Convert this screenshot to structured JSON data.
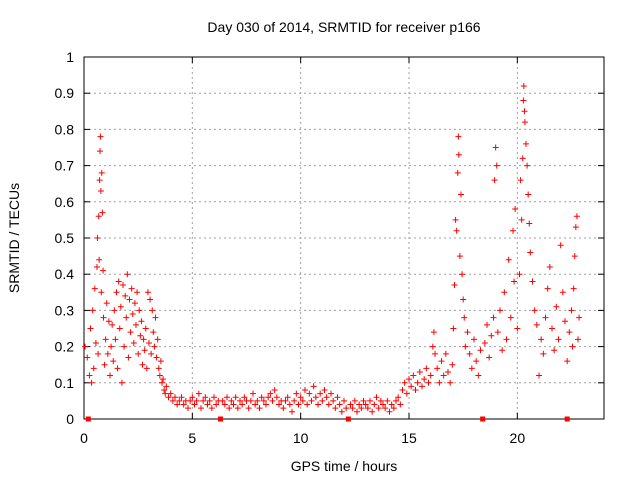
{
  "chart_data": {
    "type": "scatter",
    "title": "Day 030 of 2014, SRMTID for receiver p166",
    "xlabel": "GPS time / hours",
    "ylabel": "SRMTID / TECUs",
    "xlim": [
      0,
      24
    ],
    "ylim": [
      0,
      1
    ],
    "grid": true,
    "x_ticks": [
      0,
      5,
      10,
      15,
      20
    ],
    "x_tick_labels": [
      "0",
      "5",
      "10",
      "15",
      "20"
    ],
    "y_ticks": [
      0,
      0.1,
      0.2,
      0.3,
      0.4,
      0.5,
      0.6,
      0.7,
      0.8,
      0.9,
      1
    ],
    "y_tick_labels": [
      "0",
      "0.1",
      "0.2",
      "0.3",
      "0.4",
      "0.5",
      "0.6",
      "0.7",
      "0.8",
      "0.9",
      "1"
    ],
    "marker": "+",
    "marker_color": "#ff0000",
    "gap_markers_x": [
      0.2,
      6.3,
      12.2,
      18.4,
      22.3
    ],
    "series": [
      {
        "name": "SRMTID",
        "points": [
          [
            0.05,
            0.2
          ],
          [
            0.15,
            0.17
          ],
          [
            0.25,
            0.12
          ],
          [
            0.3,
            0.25
          ],
          [
            0.35,
            0.1
          ],
          [
            0.4,
            0.3
          ],
          [
            0.45,
            0.14
          ],
          [
            0.5,
            0.36
          ],
          [
            0.55,
            0.21
          ],
          [
            0.6,
            0.42
          ],
          [
            0.62,
            0.5
          ],
          [
            0.65,
            0.18
          ],
          [
            0.68,
            0.56
          ],
          [
            0.7,
            0.44
          ],
          [
            0.72,
            0.66
          ],
          [
            0.74,
            0.74
          ],
          [
            0.76,
            0.78
          ],
          [
            0.78,
            0.63
          ],
          [
            0.8,
            0.35
          ],
          [
            0.82,
            0.68
          ],
          [
            0.85,
            0.57
          ],
          [
            0.88,
            0.41
          ],
          [
            0.9,
            0.28
          ],
          [
            0.95,
            0.15
          ],
          [
            1.0,
            0.22
          ],
          [
            1.05,
            0.32
          ],
          [
            1.1,
            0.18
          ],
          [
            1.15,
            0.27
          ],
          [
            1.2,
            0.12
          ],
          [
            1.25,
            0.2
          ],
          [
            1.3,
            0.26
          ],
          [
            1.35,
            0.16
          ],
          [
            1.4,
            0.3
          ],
          [
            1.45,
            0.22
          ],
          [
            1.5,
            0.35
          ],
          [
            1.55,
            0.14
          ],
          [
            1.6,
            0.38
          ],
          [
            1.65,
            0.25
          ],
          [
            1.7,
            0.31
          ],
          [
            1.75,
            0.1
          ],
          [
            1.8,
            0.37
          ],
          [
            1.85,
            0.2
          ],
          [
            1.9,
            0.34
          ],
          [
            1.95,
            0.28
          ],
          [
            2.0,
            0.4
          ],
          [
            2.05,
            0.17
          ],
          [
            2.1,
            0.33
          ],
          [
            2.15,
            0.24
          ],
          [
            2.2,
            0.36
          ],
          [
            2.25,
            0.29
          ],
          [
            2.3,
            0.21
          ],
          [
            2.35,
            0.32
          ],
          [
            2.4,
            0.26
          ],
          [
            2.45,
            0.35
          ],
          [
            2.5,
            0.18
          ],
          [
            2.55,
            0.3
          ],
          [
            2.6,
            0.23
          ],
          [
            2.65,
            0.27
          ],
          [
            2.7,
            0.15
          ],
          [
            2.75,
            0.22
          ],
          [
            2.8,
            0.19
          ],
          [
            2.85,
            0.25
          ],
          [
            2.9,
            0.14
          ],
          [
            2.95,
            0.35
          ],
          [
            3.0,
            0.21
          ],
          [
            3.05,
            0.33
          ],
          [
            3.1,
            0.18
          ],
          [
            3.15,
            0.3
          ],
          [
            3.2,
            0.24
          ],
          [
            3.25,
            0.2
          ],
          [
            3.3,
            0.28
          ],
          [
            3.35,
            0.17
          ],
          [
            3.4,
            0.22
          ],
          [
            3.45,
            0.14
          ],
          [
            3.5,
            0.12
          ],
          [
            3.55,
            0.16
          ],
          [
            3.6,
            0.1
          ],
          [
            3.65,
            0.11
          ],
          [
            3.7,
            0.08
          ],
          [
            3.75,
            0.07
          ],
          [
            3.8,
            0.09
          ],
          [
            3.9,
            0.06
          ],
          [
            4.0,
            0.07
          ],
          [
            4.1,
            0.05
          ],
          [
            4.2,
            0.06
          ],
          [
            4.3,
            0.04
          ],
          [
            4.4,
            0.05
          ],
          [
            4.5,
            0.06
          ],
          [
            4.6,
            0.04
          ],
          [
            4.7,
            0.05
          ],
          [
            4.8,
            0.03
          ],
          [
            4.9,
            0.05
          ],
          [
            5.0,
            0.06
          ],
          [
            5.1,
            0.04
          ],
          [
            5.2,
            0.05
          ],
          [
            5.3,
            0.07
          ],
          [
            5.4,
            0.03
          ],
          [
            5.5,
            0.05
          ],
          [
            5.6,
            0.06
          ],
          [
            5.7,
            0.04
          ],
          [
            5.8,
            0.05
          ],
          [
            5.9,
            0.03
          ],
          [
            6.0,
            0.06
          ],
          [
            6.1,
            0.04
          ],
          [
            6.2,
            0.05
          ],
          [
            6.4,
            0.05
          ],
          [
            6.5,
            0.04
          ],
          [
            6.6,
            0.06
          ],
          [
            6.7,
            0.03
          ],
          [
            6.8,
            0.05
          ],
          [
            6.9,
            0.04
          ],
          [
            7.0,
            0.06
          ],
          [
            7.1,
            0.03
          ],
          [
            7.2,
            0.05
          ],
          [
            7.3,
            0.04
          ],
          [
            7.4,
            0.06
          ],
          [
            7.5,
            0.05
          ],
          [
            7.6,
            0.03
          ],
          [
            7.7,
            0.05
          ],
          [
            7.8,
            0.07
          ],
          [
            7.9,
            0.04
          ],
          [
            8.0,
            0.05
          ],
          [
            8.1,
            0.03
          ],
          [
            8.2,
            0.06
          ],
          [
            8.3,
            0.05
          ],
          [
            8.4,
            0.04
          ],
          [
            8.5,
            0.06
          ],
          [
            8.6,
            0.07
          ],
          [
            8.7,
            0.05
          ],
          [
            8.8,
            0.08
          ],
          [
            8.9,
            0.06
          ],
          [
            9.0,
            0.04
          ],
          [
            9.1,
            0.05
          ],
          [
            9.2,
            0.03
          ],
          [
            9.3,
            0.05
          ],
          [
            9.4,
            0.06
          ],
          [
            9.5,
            0.04
          ],
          [
            9.6,
            0.02
          ],
          [
            9.7,
            0.05
          ],
          [
            9.8,
            0.07
          ],
          [
            9.9,
            0.04
          ],
          [
            10.0,
            0.06
          ],
          [
            10.1,
            0.05
          ],
          [
            10.2,
            0.08
          ],
          [
            10.3,
            0.04
          ],
          [
            10.4,
            0.07
          ],
          [
            10.5,
            0.05
          ],
          [
            10.6,
            0.09
          ],
          [
            10.7,
            0.06
          ],
          [
            10.8,
            0.04
          ],
          [
            10.9,
            0.07
          ],
          [
            11.0,
            0.05
          ],
          [
            11.1,
            0.08
          ],
          [
            11.2,
            0.06
          ],
          [
            11.3,
            0.04
          ],
          [
            11.4,
            0.07
          ],
          [
            11.5,
            0.05
          ],
          [
            11.6,
            0.03
          ],
          [
            11.7,
            0.06
          ],
          [
            11.8,
            0.04
          ],
          [
            11.9,
            0.02
          ],
          [
            12.0,
            0.05
          ],
          [
            12.1,
            0.03
          ],
          [
            12.3,
            0.04
          ],
          [
            12.4,
            0.03
          ],
          [
            12.5,
            0.05
          ],
          [
            12.6,
            0.02
          ],
          [
            12.7,
            0.04
          ],
          [
            12.8,
            0.03
          ],
          [
            12.9,
            0.05
          ],
          [
            13.0,
            0.04
          ],
          [
            13.1,
            0.03
          ],
          [
            13.2,
            0.05
          ],
          [
            13.3,
            0.02
          ],
          [
            13.4,
            0.04
          ],
          [
            13.5,
            0.06
          ],
          [
            13.6,
            0.03
          ],
          [
            13.7,
            0.05
          ],
          [
            13.8,
            0.04
          ],
          [
            13.9,
            0.03
          ],
          [
            14.0,
            0.05
          ],
          [
            14.1,
            0.02
          ],
          [
            14.2,
            0.04
          ],
          [
            14.3,
            0.03
          ],
          [
            14.4,
            0.05
          ],
          [
            14.5,
            0.06
          ],
          [
            14.6,
            0.04
          ],
          [
            14.7,
            0.08
          ],
          [
            14.8,
            0.1
          ],
          [
            14.9,
            0.07
          ],
          [
            15.0,
            0.11
          ],
          [
            15.1,
            0.09
          ],
          [
            15.2,
            0.12
          ],
          [
            15.3,
            0.08
          ],
          [
            15.4,
            0.1
          ],
          [
            15.5,
            0.13
          ],
          [
            15.6,
            0.09
          ],
          [
            15.7,
            0.11
          ],
          [
            15.8,
            0.14
          ],
          [
            15.9,
            0.1
          ],
          [
            16.0,
            0.12
          ],
          [
            16.1,
            0.2
          ],
          [
            16.15,
            0.24
          ],
          [
            16.2,
            0.18
          ],
          [
            16.3,
            0.14
          ],
          [
            16.4,
            0.1
          ],
          [
            16.5,
            0.16
          ],
          [
            16.6,
            0.12
          ],
          [
            16.7,
            0.18
          ],
          [
            16.8,
            0.13
          ],
          [
            16.9,
            0.1
          ],
          [
            17.0,
            0.15
          ],
          [
            17.05,
            0.25
          ],
          [
            17.1,
            0.37
          ],
          [
            17.15,
            0.55
          ],
          [
            17.2,
            0.52
          ],
          [
            17.25,
            0.68
          ],
          [
            17.28,
            0.78
          ],
          [
            17.3,
            0.73
          ],
          [
            17.35,
            0.45
          ],
          [
            17.4,
            0.62
          ],
          [
            17.45,
            0.4
          ],
          [
            17.5,
            0.33
          ],
          [
            17.55,
            0.28
          ],
          [
            17.6,
            0.2
          ],
          [
            17.7,
            0.24
          ],
          [
            17.8,
            0.18
          ],
          [
            17.9,
            0.14
          ],
          [
            18.0,
            0.22
          ],
          [
            18.1,
            0.16
          ],
          [
            18.2,
            0.12
          ],
          [
            18.3,
            0.19
          ],
          [
            18.5,
            0.21
          ],
          [
            18.6,
            0.26
          ],
          [
            18.7,
            0.17
          ],
          [
            18.8,
            0.23
          ],
          [
            18.9,
            0.28
          ],
          [
            18.95,
            0.66
          ],
          [
            19.0,
            0.75
          ],
          [
            19.05,
            0.7
          ],
          [
            19.1,
            0.24
          ],
          [
            19.2,
            0.3
          ],
          [
            19.3,
            0.19
          ],
          [
            19.4,
            0.35
          ],
          [
            19.5,
            0.22
          ],
          [
            19.6,
            0.44
          ],
          [
            19.7,
            0.28
          ],
          [
            19.8,
            0.52
          ],
          [
            19.85,
            0.38
          ],
          [
            19.9,
            0.58
          ],
          [
            20.0,
            0.25
          ],
          [
            20.1,
            0.4
          ],
          [
            20.15,
            0.66
          ],
          [
            20.2,
            0.55
          ],
          [
            20.25,
            0.72
          ],
          [
            20.28,
            0.88
          ],
          [
            20.3,
            0.92
          ],
          [
            20.33,
            0.85
          ],
          [
            20.35,
            0.82
          ],
          [
            20.4,
            0.76
          ],
          [
            20.45,
            0.7
          ],
          [
            20.5,
            0.62
          ],
          [
            20.55,
            0.54
          ],
          [
            20.6,
            0.46
          ],
          [
            20.7,
            0.38
          ],
          [
            20.8,
            0.3
          ],
          [
            20.9,
            0.26
          ],
          [
            21.0,
            0.12
          ],
          [
            21.1,
            0.22
          ],
          [
            21.2,
            0.18
          ],
          [
            21.3,
            0.28
          ],
          [
            21.4,
            0.36
          ],
          [
            21.5,
            0.42
          ],
          [
            21.6,
            0.25
          ],
          [
            21.7,
            0.19
          ],
          [
            21.8,
            0.31
          ],
          [
            21.9,
            0.22
          ],
          [
            22.0,
            0.48
          ],
          [
            22.1,
            0.35
          ],
          [
            22.2,
            0.27
          ],
          [
            22.3,
            0.16
          ],
          [
            22.4,
            0.24
          ],
          [
            22.5,
            0.3
          ],
          [
            22.55,
            0.2
          ],
          [
            22.6,
            0.36
          ],
          [
            22.65,
            0.45
          ],
          [
            22.7,
            0.53
          ],
          [
            22.75,
            0.56
          ],
          [
            22.8,
            0.22
          ],
          [
            22.85,
            0.28
          ]
        ]
      }
    ]
  }
}
